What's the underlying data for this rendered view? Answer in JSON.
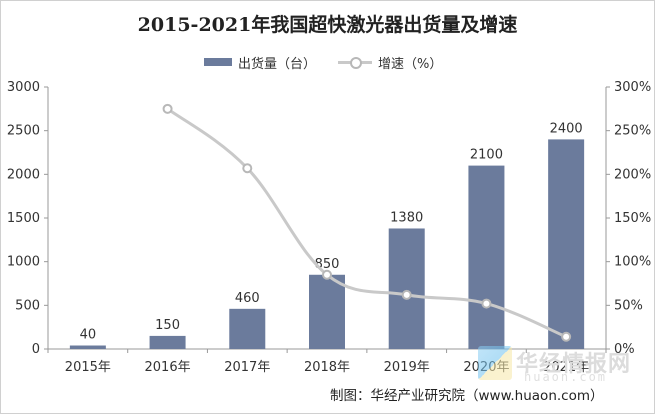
{
  "chart_data": {
    "type": "bar",
    "title": "2015-2021年我国超快激光器出货量及增速",
    "categories": [
      "2015年",
      "2016年",
      "2017年",
      "2018年",
      "2019年",
      "2020年",
      "2021年"
    ],
    "series": [
      {
        "name": "出货量（台）",
        "type": "bar",
        "axis": "left",
        "color": "#6b7b9c",
        "values": [
          40,
          150,
          460,
          850,
          1380,
          2100,
          2400
        ],
        "labels": [
          "40",
          "150",
          "460",
          "850",
          "1380",
          "2100",
          "2400"
        ]
      },
      {
        "name": "增速（%）",
        "type": "line",
        "axis": "right",
        "color": "#c9c9c9",
        "values": [
          null,
          275,
          207,
          85,
          62,
          52,
          14
        ]
      }
    ],
    "y_left": {
      "ylim": [
        0,
        3000
      ],
      "ticks": [
        "0",
        "500",
        "1000",
        "1500",
        "2000",
        "2500",
        "3000"
      ]
    },
    "y_right": {
      "ylim": [
        0,
        300
      ],
      "ticks": [
        "0%",
        "50%",
        "100%",
        "150%",
        "200%",
        "250%",
        "300%"
      ]
    },
    "grid": false,
    "legend": "top-center"
  },
  "source_text": "制图：华经产业研究院（www.huaon.com）",
  "watermark": {
    "text": "华经情报网",
    "url": "huaon.com"
  }
}
